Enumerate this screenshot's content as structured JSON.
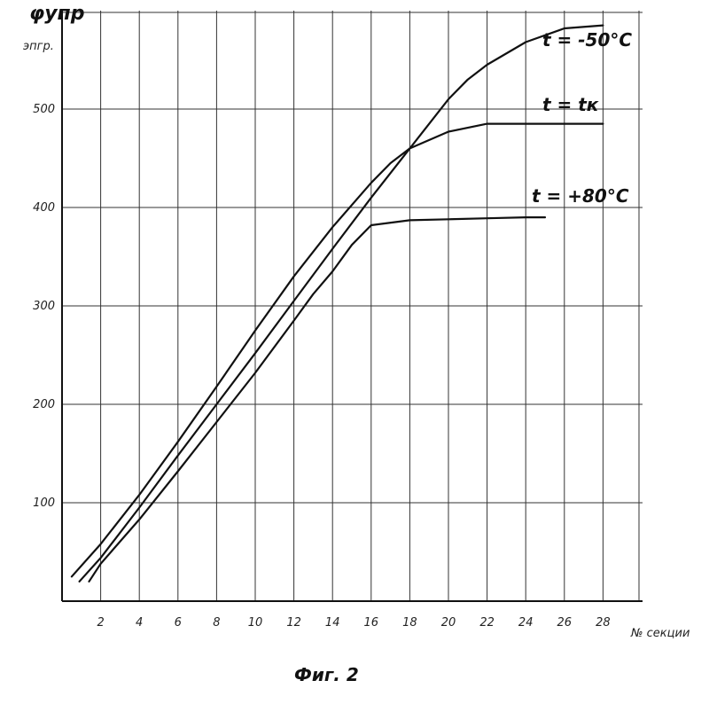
{
  "chart_data": {
    "type": "line",
    "ylabel": "φупр",
    "ylabel_unit": "эпгр.",
    "xlabel": "№ секции",
    "caption": "Фиг. 2",
    "xlim": [
      0,
      29
    ],
    "ylim": [
      0,
      600
    ],
    "x_ticks": [
      "2",
      "4",
      "6",
      "8",
      "10",
      "12",
      "14",
      "16",
      "18",
      "20",
      "22",
      "24",
      "26",
      "28"
    ],
    "y_ticks": [
      "100",
      "200",
      "300",
      "400",
      "500"
    ],
    "grid": true,
    "series": [
      {
        "name": "t = -50°C",
        "x": [
          0.9,
          2,
          4,
          6,
          8,
          10,
          12,
          14,
          16,
          18,
          20,
          21,
          22,
          24,
          26,
          28
        ],
        "y": [
          20,
          44,
          95,
          148,
          200,
          252,
          305,
          358,
          410,
          460,
          510,
          530,
          545,
          568,
          582,
          585
        ]
      },
      {
        "name": "t = tк",
        "x": [
          0.5,
          2,
          4,
          6,
          8,
          10,
          12,
          14,
          16,
          17,
          18,
          20,
          22,
          24,
          26,
          28
        ],
        "y": [
          25,
          58,
          108,
          162,
          218,
          275,
          330,
          380,
          425,
          445,
          460,
          477,
          485,
          485,
          485,
          485
        ]
      },
      {
        "name": "t = +80°C",
        "x": [
          1.4,
          2,
          4,
          6,
          8,
          10,
          12,
          13,
          14,
          15,
          16,
          18,
          20,
          22,
          24,
          25
        ],
        "y": [
          20,
          38,
          83,
          132,
          182,
          232,
          285,
          312,
          335,
          362,
          382,
          387,
          388,
          389,
          390,
          390
        ]
      }
    ]
  }
}
